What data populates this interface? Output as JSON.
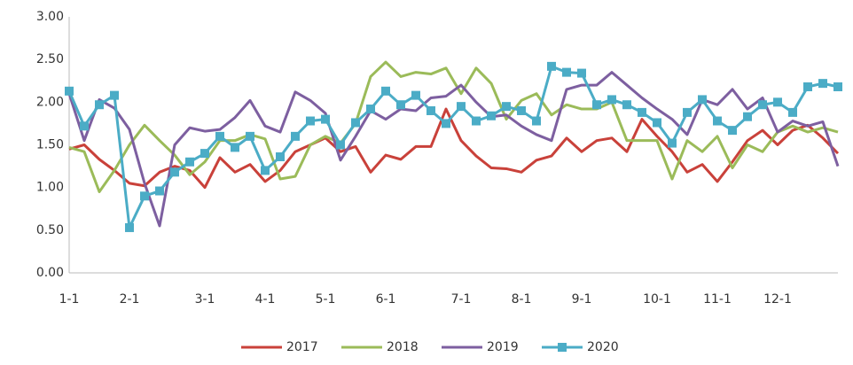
{
  "chart_data": {
    "type": "line",
    "categories": [
      "1-1",
      null,
      null,
      null,
      "2-1",
      null,
      null,
      null,
      null,
      "3-1",
      null,
      null,
      null,
      "4-1",
      null,
      null,
      null,
      "5-1",
      null,
      null,
      null,
      "6-1",
      null,
      null,
      null,
      null,
      "7-1",
      null,
      null,
      null,
      "8-1",
      null,
      null,
      null,
      "9-1",
      null,
      null,
      null,
      null,
      "10-1",
      null,
      null,
      null,
      "11-1",
      null,
      null,
      null,
      "12-1",
      null,
      null,
      null,
      null
    ],
    "series": [
      {
        "name": "2017",
        "color": "#c9413a",
        "values": [
          1.45,
          1.5,
          1.33,
          1.2,
          1.05,
          1.02,
          1.18,
          1.25,
          1.2,
          1.0,
          1.35,
          1.18,
          1.27,
          1.07,
          1.2,
          1.42,
          1.5,
          1.58,
          1.42,
          1.48,
          1.18,
          1.38,
          1.33,
          1.48,
          1.48,
          1.92,
          1.55,
          1.37,
          1.23,
          1.22,
          1.18,
          1.32,
          1.37,
          1.58,
          1.42,
          1.55,
          1.58,
          1.42,
          1.8,
          1.6,
          1.42,
          1.18,
          1.27,
          1.07,
          1.3,
          1.55,
          1.67,
          1.5,
          1.67,
          1.73,
          1.58,
          1.4
        ]
      },
      {
        "name": "2018",
        "color": "#9bbb59",
        "values": [
          1.47,
          1.42,
          0.95,
          1.2,
          1.5,
          1.73,
          1.55,
          1.38,
          1.15,
          1.3,
          1.55,
          1.55,
          1.62,
          1.57,
          1.1,
          1.13,
          1.5,
          1.6,
          1.52,
          1.75,
          2.3,
          2.47,
          2.3,
          2.35,
          2.33,
          2.4,
          2.1,
          2.4,
          2.22,
          1.8,
          2.02,
          2.1,
          1.85,
          1.97,
          1.92,
          1.92,
          2.0,
          1.55,
          1.55,
          1.55,
          1.1,
          1.55,
          1.42,
          1.6,
          1.23,
          1.5,
          1.42,
          1.65,
          1.72,
          1.65,
          1.7,
          1.65
        ]
      },
      {
        "name": "2019",
        "color": "#7d5fa0",
        "values": [
          2.1,
          1.55,
          2.03,
          1.93,
          1.68,
          1.05,
          0.55,
          1.5,
          1.7,
          1.66,
          1.68,
          1.82,
          2.02,
          1.72,
          1.65,
          2.12,
          2.02,
          1.87,
          1.32,
          1.6,
          1.9,
          1.8,
          1.92,
          1.9,
          2.05,
          2.07,
          2.2,
          2.0,
          1.83,
          1.85,
          1.72,
          1.62,
          1.55,
          2.15,
          2.2,
          2.2,
          2.35,
          2.2,
          2.05,
          1.92,
          1.8,
          1.62,
          2.03,
          1.97,
          2.15,
          1.92,
          2.05,
          1.65,
          1.78,
          1.72,
          1.77,
          1.25
        ]
      },
      {
        "name": "2020",
        "color": "#4bacc6",
        "marker": "square",
        "values": [
          2.13,
          1.72,
          1.97,
          2.08,
          0.53,
          0.9,
          0.96,
          1.18,
          1.3,
          1.4,
          1.6,
          1.47,
          1.6,
          1.2,
          1.36,
          1.6,
          1.78,
          1.8,
          1.5,
          1.76,
          1.92,
          2.13,
          1.97,
          2.08,
          1.9,
          1.75,
          1.95,
          1.78,
          1.84,
          1.95,
          1.9,
          1.78,
          2.42,
          2.35,
          2.34,
          1.97,
          2.03,
          1.97,
          1.88,
          1.76,
          1.52,
          1.88,
          2.03,
          1.78,
          1.67,
          1.83,
          1.97,
          2.0,
          1.88,
          2.18,
          2.22,
          2.18
        ]
      }
    ],
    "ylim": [
      0,
      3
    ],
    "yticks": [
      {
        "value": 0,
        "label": "0.00"
      },
      {
        "value": 0.5,
        "label": "0.50"
      },
      {
        "value": 1,
        "label": "1.00"
      },
      {
        "value": 1.5,
        "label": "1.50"
      },
      {
        "value": 2,
        "label": "2.00"
      },
      {
        "value": 2.5,
        "label": "2.50"
      },
      {
        "value": 3,
        "label": "3.00"
      }
    ],
    "grid": false,
    "legend": "bottom"
  }
}
